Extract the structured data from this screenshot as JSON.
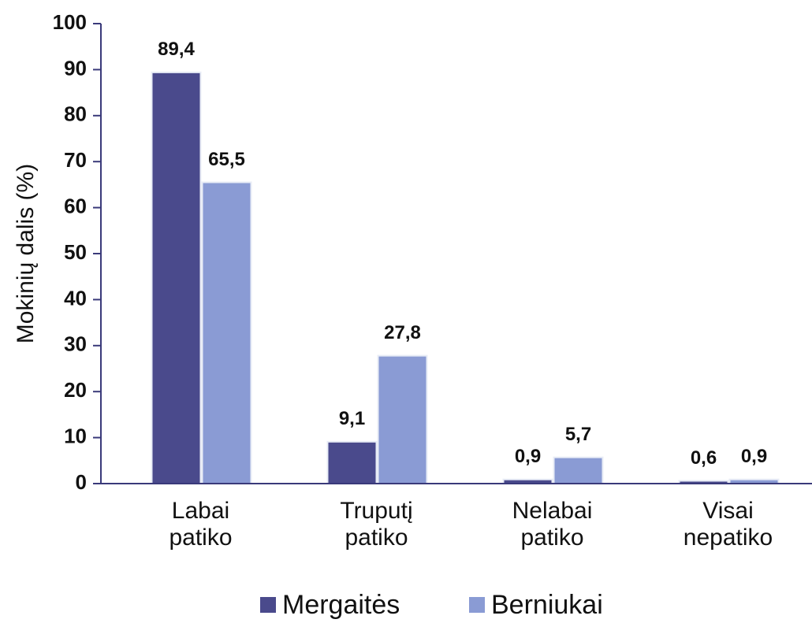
{
  "chart_data": {
    "type": "bar",
    "y_label": "Mokinių dalis (%)",
    "categories": [
      "Labai patiko",
      "Truputį patiko",
      "Nelabai patiko",
      "Visai nepatiko"
    ],
    "series": [
      {
        "name": "Mergaitės",
        "color": "#4a4a8c",
        "values": [
          89.4,
          9.1,
          0.9,
          0.6
        ],
        "value_labels": [
          "89,4",
          "9,1",
          "0,9",
          "0,6"
        ]
      },
      {
        "name": "Berniukai",
        "color": "#8a9bd4",
        "values": [
          65.5,
          27.8,
          5.7,
          0.9
        ],
        "value_labels": [
          "65,5",
          "27,8",
          "5,7",
          "0,9"
        ]
      }
    ],
    "ylim": [
      0,
      100
    ],
    "yticks": [
      0,
      10,
      20,
      30,
      40,
      50,
      60,
      70,
      80,
      90,
      100
    ]
  }
}
